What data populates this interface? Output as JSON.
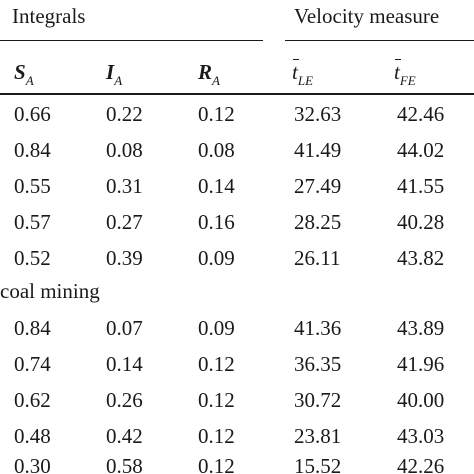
{
  "groups": {
    "integrals": "Integrals",
    "velocity": "Velocity measure"
  },
  "headers": {
    "s_main": "S",
    "s_sub": "A",
    "i_main": "I",
    "i_sub": "A",
    "r_main": "R",
    "r_sub": "A",
    "tle_main": "t",
    "tle_sub": "LE",
    "tfe_main": "t",
    "tfe_sub": "FE"
  },
  "section_label": "coal mining",
  "rows": [
    {
      "s": "0.66",
      "i": "0.22",
      "r": "0.12",
      "tle": "32.63",
      "tfe": "42.46"
    },
    {
      "s": "0.84",
      "i": "0.08",
      "r": "0.08",
      "tle": "41.49",
      "tfe": "44.02"
    },
    {
      "s": "0.55",
      "i": "0.31",
      "r": "0.14",
      "tle": "27.49",
      "tfe": "41.55"
    },
    {
      "s": "0.57",
      "i": "0.27",
      "r": "0.16",
      "tle": "28.25",
      "tfe": "40.28"
    },
    {
      "s": "0.52",
      "i": "0.39",
      "r": "0.09",
      "tle": "26.11",
      "tfe": "43.82"
    },
    {
      "s": "0.84",
      "i": "0.07",
      "r": "0.09",
      "tle": "41.36",
      "tfe": "43.89"
    },
    {
      "s": "0.74",
      "i": "0.14",
      "r": "0.12",
      "tle": "36.35",
      "tfe": "41.96"
    },
    {
      "s": "0.62",
      "i": "0.26",
      "r": "0.12",
      "tle": "30.72",
      "tfe": "40.00"
    },
    {
      "s": "0.48",
      "i": "0.42",
      "r": "0.12",
      "tle": "23.81",
      "tfe": "43.03"
    },
    {
      "s": "0.30",
      "i": "0.58",
      "r": "0.12",
      "tle": "15.52",
      "tfe": "42.26"
    }
  ]
}
